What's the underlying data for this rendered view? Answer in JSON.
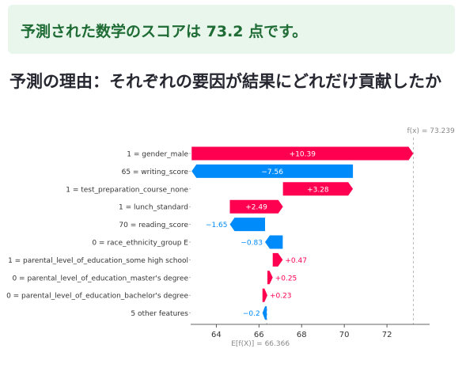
{
  "result": {
    "text_before": "予測された数学のスコアは ",
    "value": "73.2",
    "text_after": " 点です。"
  },
  "section_title": "予測の理由：それぞれの要因が結果にどれだけ貢献したか",
  "colors": {
    "positive": "#ff0051",
    "negative": "#008bfb",
    "result_bg": "#e8f6ec",
    "result_text": "#1e6b34",
    "axis": "#333333",
    "dashed": "#bbbbbb"
  },
  "chart_data": {
    "type": "waterfall",
    "title": "",
    "xlabel": "",
    "fx_label": "f(x) = 73.239",
    "fx_value": 73.239,
    "base_label": "E[f(X)] = 66.366",
    "base_value": 66.366,
    "xlim": [
      62.8,
      74.0
    ],
    "xticks": [
      64,
      66,
      68,
      70,
      72
    ],
    "features": [
      {
        "name": "1 = gender_male",
        "value": 10.39,
        "label": "+10.39"
      },
      {
        "name": "65 = writing_score",
        "value": -7.56,
        "label": "−7.56"
      },
      {
        "name": "1 = test_preparation_course_none",
        "value": 3.28,
        "label": "+3.28"
      },
      {
        "name": "1 = lunch_standard",
        "value": 2.49,
        "label": "+2.49"
      },
      {
        "name": "70 = reading_score",
        "value": -1.65,
        "label": "−1.65"
      },
      {
        "name": "0 = race_ethnicity_group E",
        "value": -0.83,
        "label": "−0.83"
      },
      {
        "name": "1 = parental_level_of_education_some high school",
        "value": 0.47,
        "label": "+0.47"
      },
      {
        "name": "0 = parental_level_of_education_master's degree",
        "value": 0.25,
        "label": "+0.25"
      },
      {
        "name": "0 = parental_level_of_education_bachelor's degree",
        "value": 0.23,
        "label": "+0.23"
      },
      {
        "name": "5 other features",
        "value": -0.2,
        "label": "−0.2"
      }
    ]
  }
}
